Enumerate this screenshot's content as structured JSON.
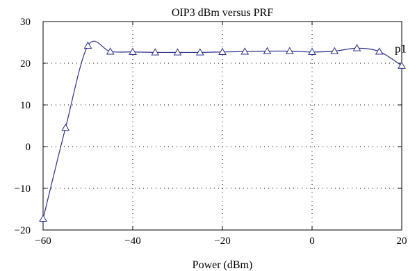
{
  "chart_data": {
    "type": "line",
    "title": "OIP3 dBm versus PRF",
    "xlabel": "Power (dBm)",
    "ylabel": "",
    "xlim": [
      -60,
      20
    ],
    "ylim": [
      -20,
      30
    ],
    "xticks": [
      -60,
      -40,
      -20,
      0,
      20
    ],
    "yticks": [
      -20,
      -10,
      0,
      10,
      20,
      30
    ],
    "xtick_labels": [
      "−60",
      "−40",
      "−20",
      "0",
      "20"
    ],
    "ytick_labels": [
      "−20",
      "−10",
      "0",
      "10",
      "20",
      "30"
    ],
    "grid": true,
    "marker": "triangle",
    "line_color": "#2b2f8a",
    "series": [
      {
        "name": "",
        "x": [
          -60,
          -55,
          -50,
          -45,
          -40,
          -35,
          -30,
          -25,
          -20,
          -15,
          -10,
          -5,
          0,
          5,
          10,
          15,
          20
        ],
        "y": [
          -17.3,
          4.5,
          24.2,
          22.8,
          22.7,
          22.6,
          22.6,
          22.6,
          22.7,
          22.8,
          22.9,
          22.9,
          22.7,
          22.9,
          23.6,
          22.8,
          19.4
        ]
      }
    ],
    "annotation": {
      "text": "p1",
      "x": 20,
      "y": 22.6
    }
  }
}
